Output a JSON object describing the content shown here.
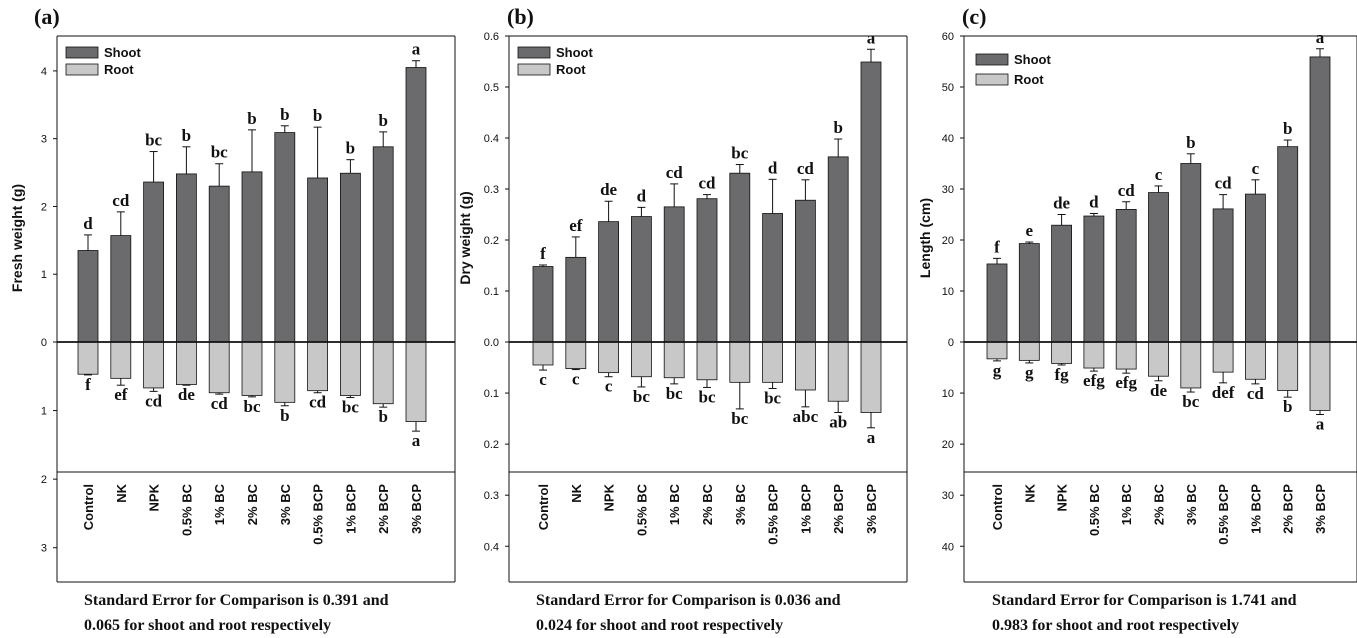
{
  "chart_data": [
    {
      "type": "bar",
      "panel_label": "(a)",
      "ylabel": "Fresh weight (g)",
      "categories": [
        "Control",
        "NK",
        "NPK",
        "0.5% BC",
        "1% BC",
        "2% BC",
        "3% BC",
        "0.5% BCP",
        "1% BCP",
        "2% BCP",
        "3% BCP"
      ],
      "top_ticks": [
        "0",
        "1",
        "2",
        "3",
        "4"
      ],
      "bottom_ticks": [
        "1",
        "2",
        "3"
      ],
      "ylim_top": [
        0,
        4.5
      ],
      "ylim_bottom": [
        0,
        3.5
      ],
      "grid": false,
      "legend_position": "top-left",
      "series": [
        {
          "name": "Shoot",
          "color": "#6b6b6e",
          "values": [
            1.35,
            1.57,
            2.36,
            2.48,
            2.3,
            2.51,
            3.09,
            2.42,
            2.49,
            2.88,
            4.05
          ],
          "errors": [
            0.23,
            0.35,
            0.45,
            0.4,
            0.33,
            0.62,
            0.1,
            0.75,
            0.2,
            0.22,
            0.1
          ],
          "letters": [
            "d",
            "cd",
            "bc",
            "b",
            "bc",
            "b",
            "b",
            "b",
            "b",
            "b",
            "a"
          ]
        },
        {
          "name": "Root",
          "color": "#c8c8c8",
          "values": [
            0.47,
            0.53,
            0.67,
            0.62,
            0.74,
            0.78,
            0.88,
            0.71,
            0.78,
            0.9,
            1.16
          ],
          "errors": [
            0.01,
            0.1,
            0.05,
            0.01,
            0.02,
            0.02,
            0.05,
            0.03,
            0.03,
            0.05,
            0.14
          ],
          "letters": [
            "f",
            "ef",
            "cd",
            "de",
            "cd",
            "bc",
            "b",
            "cd",
            "bc",
            "b",
            "a"
          ]
        }
      ],
      "footnote": [
        "Standard Error for Comparison is 0.391 and",
        "0.065 for shoot and root respectively"
      ]
    },
    {
      "type": "bar",
      "panel_label": "(b)",
      "ylabel": "Dry weight (g)",
      "categories": [
        "Control",
        "NK",
        "NPK",
        "0.5% BC",
        "1% BC",
        "2% BC",
        "3% BC",
        "0.5% BCP",
        "1% BCP",
        "2% BCP",
        "3% BCP"
      ],
      "top_ticks": [
        "0.0",
        "0.1",
        "0.2",
        "0.3",
        "0.4",
        "0.5",
        "0.6"
      ],
      "bottom_ticks": [
        "0.1",
        "0.2",
        "0.3",
        "0.4"
      ],
      "ylim_top": [
        0,
        0.6
      ],
      "ylim_bottom": [
        0,
        0.47
      ],
      "grid": false,
      "legend_position": "top-left",
      "series": [
        {
          "name": "Shoot",
          "color": "#6b6b6e",
          "values": [
            0.148,
            0.166,
            0.236,
            0.246,
            0.265,
            0.281,
            0.331,
            0.252,
            0.278,
            0.363,
            0.549
          ],
          "errors": [
            0.003,
            0.04,
            0.04,
            0.018,
            0.045,
            0.008,
            0.017,
            0.067,
            0.04,
            0.035,
            0.025
          ],
          "letters": [
            "f",
            "ef",
            "de",
            "d",
            "cd",
            "cd",
            "bc",
            "d",
            "cd",
            "b",
            "a"
          ]
        },
        {
          "name": "Root",
          "color": "#c8c8c8",
          "values": [
            0.045,
            0.052,
            0.06,
            0.068,
            0.07,
            0.074,
            0.079,
            0.079,
            0.094,
            0.116,
            0.138
          ],
          "errors": [
            0.01,
            0.002,
            0.008,
            0.02,
            0.012,
            0.015,
            0.052,
            0.012,
            0.033,
            0.022,
            0.03
          ],
          "letters": [
            "c",
            "c",
            "c",
            "bc",
            "bc",
            "bc",
            "bc",
            "bc",
            "abc",
            "ab",
            "a"
          ]
        }
      ],
      "footnote": [
        "Standard Error for Comparison is 0.036 and",
        "0.024 for shoot and root respectively"
      ]
    },
    {
      "type": "bar",
      "panel_label": "(c)",
      "ylabel": "Length (cm)",
      "categories": [
        "Control",
        "NK",
        "NPK",
        "0.5% BC",
        "1% BC",
        "2% BC",
        "3% BC",
        "0.5% BCP",
        "1% BCP",
        "2% BCP",
        "3% BCP"
      ],
      "top_ticks": [
        "0",
        "10",
        "20",
        "30",
        "40",
        "50",
        "60"
      ],
      "bottom_ticks": [
        "10",
        "20",
        "30",
        "40"
      ],
      "ylim_top": [
        0,
        60
      ],
      "ylim_bottom": [
        0,
        47
      ],
      "grid": false,
      "legend_position": "top-left",
      "series": [
        {
          "name": "Shoot",
          "color": "#6b6b6e",
          "values": [
            15.3,
            19.3,
            22.9,
            24.7,
            26.0,
            29.3,
            35.0,
            26.1,
            29.0,
            38.3,
            55.9
          ],
          "errors": [
            1.1,
            0.3,
            2.1,
            0.5,
            1.5,
            1.3,
            1.9,
            2.8,
            2.8,
            1.3,
            1.6
          ],
          "letters": [
            "f",
            "e",
            "de",
            "d",
            "cd",
            "c",
            "b",
            "cd",
            "c",
            "b",
            "a"
          ]
        },
        {
          "name": "Root",
          "color": "#c8c8c8",
          "values": [
            3.3,
            3.6,
            4.2,
            5.1,
            5.3,
            6.7,
            9.0,
            5.9,
            7.3,
            9.5,
            13.4
          ],
          "errors": [
            0.4,
            0.5,
            0.3,
            0.6,
            0.8,
            0.9,
            0.8,
            2.1,
            0.9,
            1.3,
            0.8
          ],
          "letters": [
            "g",
            "g",
            "fg",
            "efg",
            "efg",
            "de",
            "bc",
            "def",
            "cd",
            "b",
            "a"
          ]
        }
      ],
      "footnote": [
        "Standard Error for Comparison is 1.741 and",
        "0.983 for shoot and root respectively"
      ]
    }
  ]
}
